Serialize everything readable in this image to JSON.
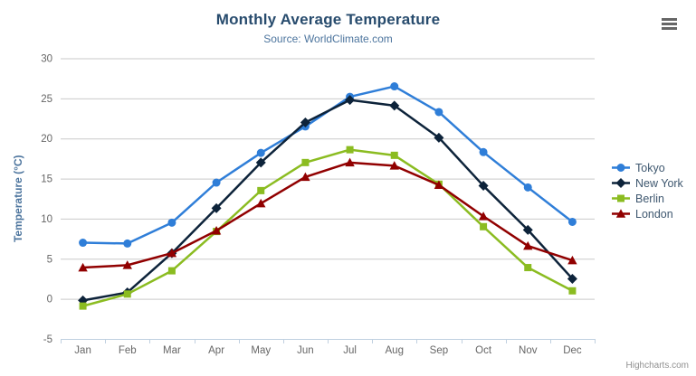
{
  "header": {
    "title": "Monthly Average Temperature",
    "subtitle": "Source: WorldClimate.com"
  },
  "menu": {
    "icon": "hamburger-menu-icon"
  },
  "credit": {
    "label": "Highcharts.com"
  },
  "colors": {
    "title": "#274b6d",
    "subtitle": "#4d759e",
    "axis_title": "#4d759e",
    "tick_label": "#666666",
    "grid_line": "#C9C9C9",
    "axis_line": "#C0D0E0",
    "legend_text": "#3E576F",
    "credit_text": "#909090"
  },
  "chart_data": {
    "type": "line",
    "title": "Monthly Average Temperature",
    "subtitle": "Source: WorldClimate.com",
    "xlabel": "",
    "ylabel": "Temperature (°C)",
    "categories": [
      "Jan",
      "Feb",
      "Mar",
      "Apr",
      "May",
      "Jun",
      "Jul",
      "Aug",
      "Sep",
      "Oct",
      "Nov",
      "Dec"
    ],
    "ylim": [
      -5,
      30
    ],
    "ytick_interval": 5,
    "grid": true,
    "legend_position": "right",
    "series": [
      {
        "name": "Tokyo",
        "color": "#2f7ed8",
        "marker": "circle",
        "values": [
          7.0,
          6.9,
          9.5,
          14.5,
          18.2,
          21.5,
          25.2,
          26.5,
          23.3,
          18.3,
          13.9,
          9.6
        ]
      },
      {
        "name": "New York",
        "color": "#0d233a",
        "marker": "diamond",
        "values": [
          -0.2,
          0.8,
          5.7,
          11.3,
          17.0,
          22.0,
          24.8,
          24.1,
          20.1,
          14.1,
          8.6,
          2.5
        ]
      },
      {
        "name": "Berlin",
        "color": "#8bbc21",
        "marker": "square",
        "values": [
          -0.9,
          0.6,
          3.5,
          8.4,
          13.5,
          17.0,
          18.6,
          17.9,
          14.3,
          9.0,
          3.9,
          1.0
        ]
      },
      {
        "name": "London",
        "color": "#910000",
        "marker": "triangle",
        "values": [
          3.9,
          4.2,
          5.7,
          8.5,
          11.9,
          15.2,
          17.0,
          16.6,
          14.2,
          10.3,
          6.6,
          4.8
        ]
      }
    ]
  }
}
